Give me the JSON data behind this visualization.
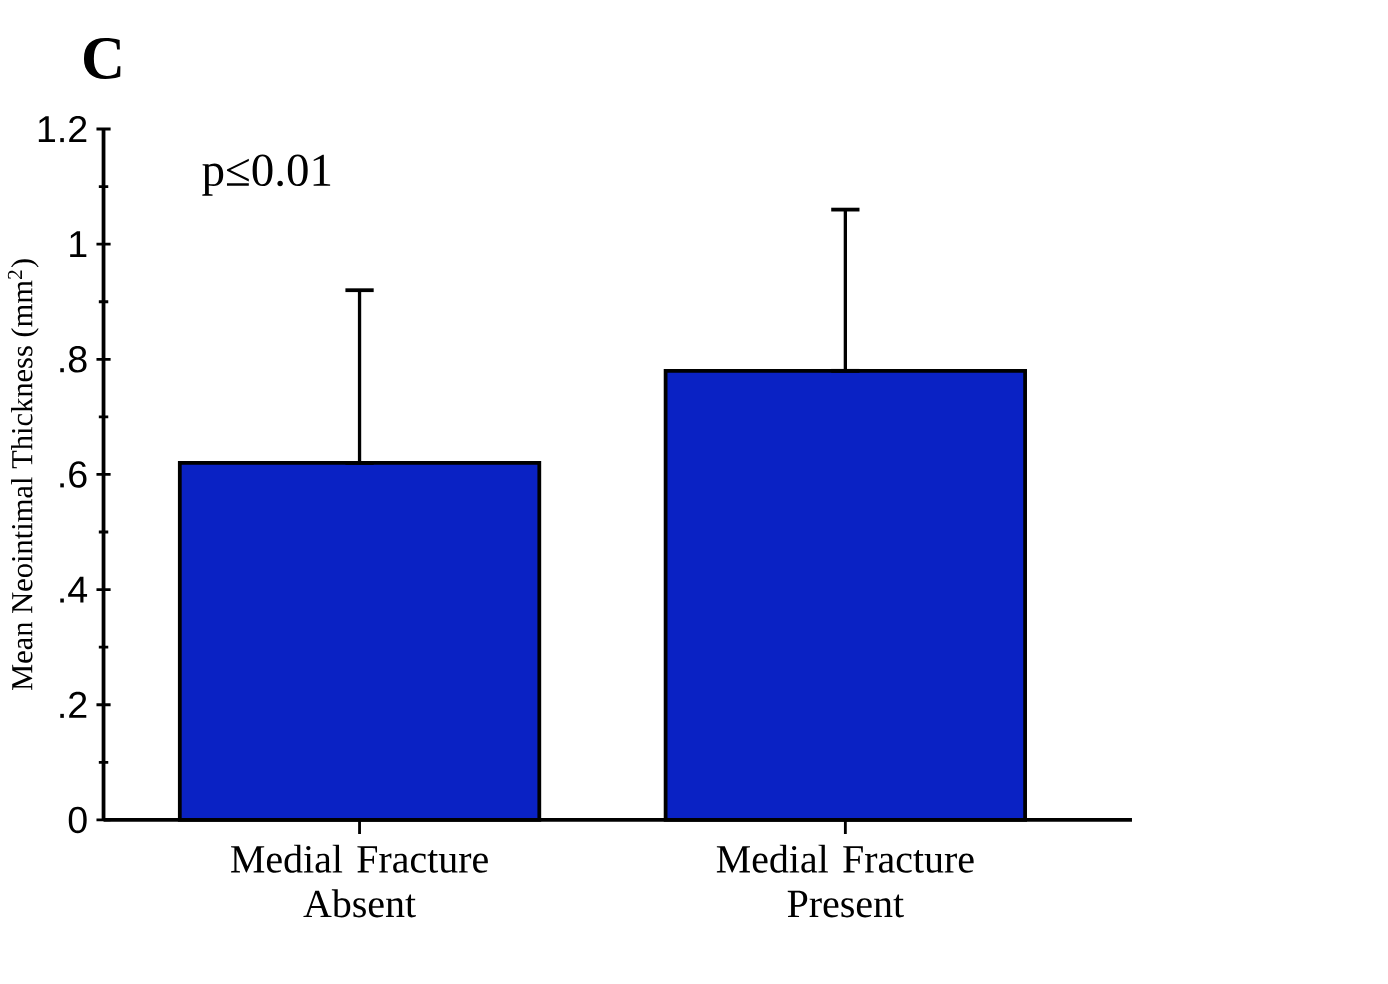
{
  "chart_data": {
    "type": "bar",
    "title": "C",
    "ylabel": "Mean Neointimal Thickness (mm$^{2}$)",
    "categories": [
      "Medial Fracture Absent",
      "Medial Fracture Present"
    ],
    "values": [
      0.62,
      0.78
    ],
    "errors": [
      [
        0.62,
        0.92
      ],
      [
        0.78,
        1.06
      ]
    ],
    "color": "#0a22c4",
    "ylim": [
      0,
      1.2
    ],
    "yticks": [
      0,
      {
        "value": 0.2,
        "label": ".2"
      },
      {
        "value": 0.4,
        "label": ".4"
      },
      {
        "value": 0.6,
        "label": ".6"
      },
      {
        "value": 0.8,
        "label": ".8"
      },
      1,
      1.2
    ],
    "annotations": [
      "p≤0.01"
    ],
    "grid": false
  }
}
